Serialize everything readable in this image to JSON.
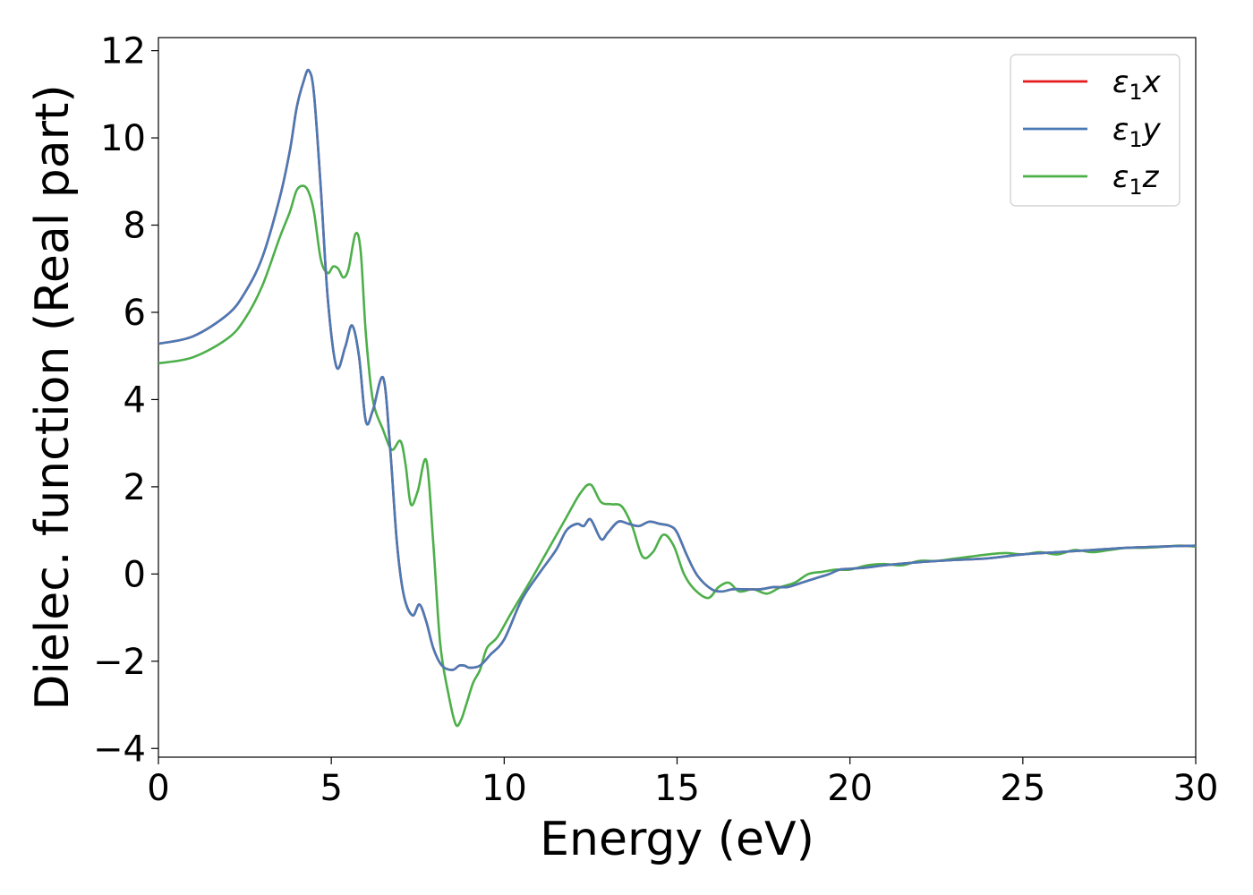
{
  "chart_data": {
    "type": "line",
    "title": "",
    "xlabel": "Energy (eV)",
    "ylabel": "Dielec. function (Real part)",
    "xlim": [
      0,
      30
    ],
    "ylim": [
      -4.2,
      12.3
    ],
    "xticks": [
      0,
      5,
      10,
      15,
      20,
      25,
      30
    ],
    "xtick_labels": [
      "0",
      "5",
      "10",
      "15",
      "20",
      "25",
      "30"
    ],
    "yticks": [
      -4,
      -2,
      0,
      2,
      4,
      6,
      8,
      10,
      12
    ],
    "ytick_labels": [
      "−4",
      "−2",
      "0",
      "2",
      "4",
      "6",
      "8",
      "10",
      "12"
    ],
    "grid": false,
    "legend_position": "top-right",
    "series": [
      {
        "name": "ε1x",
        "legend_base": "ε",
        "legend_sub": "1",
        "legend_suffix": "x",
        "color": "#e41a1c",
        "x": [
          0,
          1,
          2,
          2.5,
          3,
          3.5,
          3.8,
          4,
          4.2,
          4.35,
          4.5,
          4.7,
          4.9,
          5.15,
          5.4,
          5.6,
          5.8,
          6.0,
          6.2,
          6.5,
          6.7,
          6.9,
          7.1,
          7.35,
          7.55,
          7.75,
          7.95,
          8.2,
          8.5,
          8.7,
          8.85,
          9.0,
          9.3,
          9.6,
          10,
          10.5,
          11,
          11.5,
          11.8,
          12.1,
          12.3,
          12.5,
          12.8,
          13.0,
          13.3,
          13.6,
          13.9,
          14.2,
          14.5,
          14.8,
          15.0,
          15.3,
          15.6,
          16.0,
          16.3,
          16.6,
          17.0,
          17.4,
          17.8,
          18.2,
          18.6,
          19.0,
          19.4,
          19.7,
          20,
          20.5,
          21,
          22,
          23,
          24,
          25,
          26,
          27,
          28,
          29,
          30
        ],
        "y": [
          5.28,
          5.45,
          5.95,
          6.45,
          7.25,
          8.6,
          9.7,
          10.7,
          11.3,
          11.55,
          11.0,
          8.8,
          6.3,
          4.75,
          5.2,
          5.7,
          5.0,
          3.5,
          3.75,
          4.5,
          2.9,
          0.7,
          -0.5,
          -0.95,
          -0.7,
          -1.1,
          -1.7,
          -2.1,
          -2.2,
          -2.1,
          -2.1,
          -2.15,
          -2.1,
          -1.85,
          -1.5,
          -0.6,
          0.0,
          0.55,
          1.0,
          1.15,
          1.1,
          1.25,
          0.8,
          0.95,
          1.2,
          1.15,
          1.1,
          1.2,
          1.15,
          1.1,
          0.95,
          0.4,
          -0.05,
          -0.35,
          -0.4,
          -0.35,
          -0.35,
          -0.35,
          -0.3,
          -0.3,
          -0.2,
          -0.1,
          0.0,
          0.1,
          0.12,
          0.15,
          0.2,
          0.27,
          0.32,
          0.36,
          0.45,
          0.5,
          0.55,
          0.6,
          0.63,
          0.65
        ]
      },
      {
        "name": "ε1y",
        "legend_base": "ε",
        "legend_sub": "1",
        "legend_suffix": "y",
        "color": "#4a7ab5",
        "x": [
          0,
          1,
          2,
          2.5,
          3,
          3.5,
          3.8,
          4,
          4.2,
          4.35,
          4.5,
          4.7,
          4.9,
          5.15,
          5.4,
          5.6,
          5.8,
          6.0,
          6.2,
          6.5,
          6.7,
          6.9,
          7.1,
          7.35,
          7.55,
          7.75,
          7.95,
          8.2,
          8.5,
          8.7,
          8.85,
          9.0,
          9.3,
          9.6,
          10,
          10.5,
          11,
          11.5,
          11.8,
          12.1,
          12.3,
          12.5,
          12.8,
          13.0,
          13.3,
          13.6,
          13.9,
          14.2,
          14.5,
          14.8,
          15.0,
          15.3,
          15.6,
          16.0,
          16.3,
          16.6,
          17.0,
          17.4,
          17.8,
          18.2,
          18.6,
          19.0,
          19.4,
          19.7,
          20,
          20.5,
          21,
          22,
          23,
          24,
          25,
          26,
          27,
          28,
          29,
          30
        ],
        "y": [
          5.28,
          5.45,
          5.95,
          6.45,
          7.25,
          8.6,
          9.7,
          10.7,
          11.3,
          11.55,
          11.0,
          8.8,
          6.3,
          4.75,
          5.2,
          5.7,
          5.0,
          3.5,
          3.75,
          4.5,
          2.9,
          0.7,
          -0.5,
          -0.95,
          -0.7,
          -1.1,
          -1.7,
          -2.1,
          -2.2,
          -2.1,
          -2.1,
          -2.15,
          -2.1,
          -1.85,
          -1.5,
          -0.6,
          0.0,
          0.55,
          1.0,
          1.15,
          1.1,
          1.25,
          0.8,
          0.95,
          1.2,
          1.15,
          1.1,
          1.2,
          1.15,
          1.1,
          0.95,
          0.4,
          -0.05,
          -0.35,
          -0.4,
          -0.35,
          -0.35,
          -0.35,
          -0.3,
          -0.3,
          -0.2,
          -0.1,
          0.0,
          0.1,
          0.12,
          0.15,
          0.2,
          0.27,
          0.32,
          0.36,
          0.45,
          0.5,
          0.55,
          0.6,
          0.63,
          0.65
        ]
      },
      {
        "name": "ε1z",
        "legend_base": "ε",
        "legend_sub": "1",
        "legend_suffix": "z",
        "color": "#4daf4a",
        "x": [
          0,
          1,
          2,
          2.5,
          3,
          3.5,
          3.8,
          4.0,
          4.2,
          4.35,
          4.5,
          4.7,
          4.9,
          5.05,
          5.2,
          5.35,
          5.5,
          5.7,
          5.85,
          6.0,
          6.2,
          6.5,
          6.75,
          7.0,
          7.15,
          7.3,
          7.5,
          7.75,
          7.95,
          8.15,
          8.4,
          8.6,
          8.75,
          8.9,
          9.1,
          9.3,
          9.5,
          9.8,
          10.2,
          10.8,
          11.3,
          11.8,
          12.2,
          12.5,
          12.8,
          13.1,
          13.4,
          13.7,
          14.0,
          14.3,
          14.6,
          14.9,
          15.2,
          15.5,
          15.9,
          16.2,
          16.5,
          16.8,
          17.2,
          17.6,
          18.0,
          18.4,
          18.8,
          19.2,
          19.6,
          20,
          20.5,
          21,
          21.5,
          22,
          22.5,
          23,
          23.5,
          24,
          24.5,
          25,
          25.5,
          26,
          26.5,
          27,
          27.5,
          28,
          28.5,
          29,
          29.5,
          30
        ],
        "y": [
          4.83,
          4.97,
          5.4,
          5.85,
          6.6,
          7.7,
          8.3,
          8.8,
          8.9,
          8.75,
          8.3,
          7.2,
          6.9,
          7.05,
          7.0,
          6.8,
          7.0,
          7.8,
          7.4,
          5.5,
          4.0,
          3.3,
          2.85,
          3.05,
          2.5,
          1.6,
          1.9,
          2.6,
          0.7,
          -1.6,
          -2.8,
          -3.45,
          -3.35,
          -3.0,
          -2.5,
          -2.2,
          -1.7,
          -1.45,
          -0.9,
          -0.1,
          0.6,
          1.3,
          1.85,
          2.05,
          1.65,
          1.6,
          1.55,
          1.1,
          0.4,
          0.5,
          0.9,
          0.65,
          0.0,
          -0.35,
          -0.55,
          -0.3,
          -0.2,
          -0.4,
          -0.35,
          -0.45,
          -0.3,
          -0.2,
          0.0,
          0.05,
          0.1,
          0.1,
          0.2,
          0.23,
          0.2,
          0.3,
          0.3,
          0.35,
          0.4,
          0.45,
          0.48,
          0.45,
          0.5,
          0.45,
          0.55,
          0.5,
          0.55,
          0.6,
          0.6,
          0.62,
          0.65,
          0.63
        ]
      }
    ]
  }
}
